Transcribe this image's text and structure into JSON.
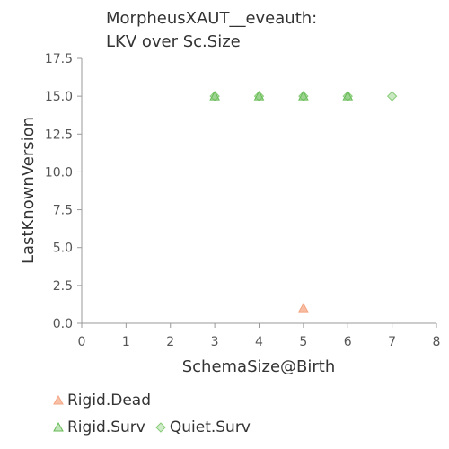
{
  "chart_data": {
    "type": "scatter",
    "title_lines": [
      "MorpheusXAUT__eveauth:",
      "LKV over Sc.Size"
    ],
    "xlabel": "SchemaSize@Birth",
    "ylabel": "LastKnownVersion",
    "xlim": [
      0,
      8
    ],
    "ylim": [
      0,
      17.5
    ],
    "x_ticks": [
      0,
      1,
      2,
      3,
      4,
      5,
      6,
      7,
      8
    ],
    "y_ticks": [
      0.0,
      2.5,
      5.0,
      7.5,
      10.0,
      12.5,
      15.0,
      17.5
    ],
    "x_tick_labels": [
      "0",
      "1",
      "2",
      "3",
      "4",
      "5",
      "6",
      "7",
      "8"
    ],
    "y_tick_labels": [
      "0.0",
      "2.5",
      "5.0",
      "7.5",
      "10.0",
      "12.5",
      "15.0",
      "17.5"
    ],
    "grid": false,
    "legend_position": "bottom",
    "series": [
      {
        "name": "Rigid.Dead",
        "marker": "triangle",
        "color": "#f4a582",
        "points": [
          {
            "x": 5,
            "y": 1
          }
        ]
      },
      {
        "name": "Rigid.Surv",
        "marker": "triangle",
        "color": "#66bb55",
        "points": [
          {
            "x": 3,
            "y": 15
          },
          {
            "x": 4,
            "y": 15
          },
          {
            "x": 5,
            "y": 15
          },
          {
            "x": 6,
            "y": 15
          }
        ]
      },
      {
        "name": "Quiet.Surv",
        "marker": "diamond",
        "color": "#88cc77",
        "points": [
          {
            "x": 3,
            "y": 15
          },
          {
            "x": 4,
            "y": 15
          },
          {
            "x": 5,
            "y": 15
          },
          {
            "x": 6,
            "y": 15
          },
          {
            "x": 7,
            "y": 15
          }
        ]
      }
    ]
  }
}
